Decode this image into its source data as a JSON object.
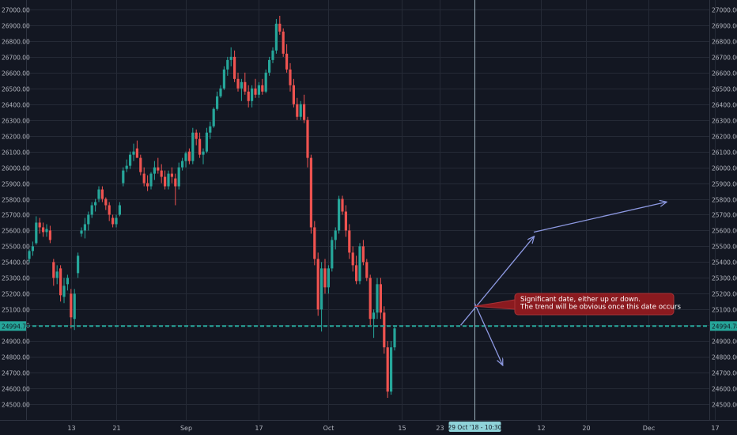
{
  "chart_data": {
    "type": "candlestick",
    "y_range": [
      24400,
      27060
    ],
    "y_ticks": [
      24500,
      24600,
      24700,
      24800,
      24900,
      25000,
      25100,
      25200,
      25300,
      25400,
      25500,
      25600,
      25700,
      25800,
      25900,
      26000,
      26100,
      26200,
      26300,
      26400,
      26500,
      26600,
      26700,
      26800,
      26900,
      27000
    ],
    "y_tick_labels": [
      "24500.00",
      "24600.00",
      "24700.00",
      "24800.00",
      "24900.00",
      "25000.00",
      "25100.00",
      "25200.00",
      "25300.00",
      "25400.00",
      "25500.00",
      "25600.00",
      "25700.00",
      "25800.00",
      "25900.00",
      "26000.00",
      "26100.00",
      "26200.00",
      "26300.00",
      "26400.00",
      "26500.00",
      "26600.00",
      "26700.00",
      "26800.00",
      "26900.00",
      "27000.00"
    ],
    "x_labels": [
      {
        "label": "13",
        "index": 12
      },
      {
        "label": "21",
        "index": 25
      },
      {
        "label": "Sep",
        "index": 45
      },
      {
        "label": "17",
        "index": 66
      },
      {
        "label": "Oct",
        "index": 86
      },
      {
        "label": "15",
        "index": 107
      },
      {
        "label": "23",
        "index": 118
      },
      {
        "label": "12",
        "index": 147
      },
      {
        "label": "20",
        "index": 160
      },
      {
        "label": "Dec",
        "index": 178
      },
      {
        "label": "17",
        "index": 197
      }
    ],
    "current_price": 24994.78,
    "current_price_label": "24994.78",
    "crosshair_index": 128,
    "crosshair_label": "29 Oct '18 - 10:30",
    "annotation": {
      "lines": [
        "Significant date, either up or down.",
        "The trend will be obvious once this date occurs"
      ],
      "anchor_index": 128,
      "anchor_price": 25120
    },
    "projections": [
      {
        "from": [
          124,
          25000
        ],
        "to": [
          145,
          25560
        ]
      },
      {
        "from": [
          145,
          25590
        ],
        "to": [
          183,
          25780
        ]
      },
      {
        "from": [
          128,
          25140
        ],
        "to": [
          136,
          24750
        ]
      }
    ],
    "candles": [
      [
        25420,
        25480,
        25400,
        25470
      ],
      [
        25470,
        25530,
        25440,
        25500
      ],
      [
        25520,
        25690,
        25510,
        25650
      ],
      [
        25650,
        25680,
        25580,
        25620
      ],
      [
        25620,
        25650,
        25560,
        25590
      ],
      [
        25590,
        25640,
        25560,
        25610
      ],
      [
        25600,
        25630,
        25520,
        25540
      ],
      [
        25400,
        25420,
        25250,
        25300
      ],
      [
        25300,
        25380,
        25260,
        25340
      ],
      [
        25360,
        25380,
        25150,
        25190
      ],
      [
        25180,
        25300,
        25140,
        25250
      ],
      [
        25260,
        25320,
        25220,
        25300
      ],
      [
        25200,
        25230,
        24980,
        25050
      ],
      [
        25040,
        25230,
        24970,
        25200
      ],
      [
        25330,
        25460,
        25300,
        25440
      ],
      [
        25580,
        25620,
        25560,
        25600
      ],
      [
        25600,
        25680,
        25550,
        25640
      ],
      [
        25640,
        25720,
        25600,
        25700
      ],
      [
        25700,
        25780,
        25680,
        25760
      ],
      [
        25760,
        25800,
        25720,
        25780
      ],
      [
        25800,
        25880,
        25780,
        25860
      ],
      [
        25860,
        25880,
        25780,
        25800
      ],
      [
        25800,
        25810,
        25730,
        25760
      ],
      [
        25760,
        25780,
        25660,
        25700
      ],
      [
        25680,
        25700,
        25620,
        25640
      ],
      [
        25640,
        25700,
        25620,
        25680
      ],
      [
        25700,
        25780,
        25690,
        25760
      ],
      [
        25900,
        26000,
        25880,
        25980
      ],
      [
        25990,
        26050,
        25970,
        26010
      ],
      [
        26010,
        26100,
        25990,
        26080
      ],
      [
        26080,
        26150,
        26040,
        26100
      ],
      [
        26120,
        26170,
        26080,
        26060
      ],
      [
        26060,
        26080,
        25950,
        25970
      ],
      [
        25960,
        26000,
        25880,
        25900
      ],
      [
        25900,
        25950,
        25850,
        25880
      ],
      [
        25880,
        25970,
        25860,
        25960
      ],
      [
        25960,
        26040,
        25920,
        26000
      ],
      [
        26000,
        26060,
        25960,
        25980
      ],
      [
        25980,
        26020,
        25900,
        25940
      ],
      [
        25940,
        25980,
        25860,
        25880
      ],
      [
        25880,
        25980,
        25860,
        25960
      ],
      [
        25960,
        26000,
        25900,
        25940
      ],
      [
        25930,
        25960,
        25760,
        25880
      ],
      [
        25880,
        26030,
        25860,
        26000
      ],
      [
        26000,
        26060,
        25980,
        26040
      ],
      [
        26040,
        26100,
        26000,
        26090
      ],
      [
        26100,
        26120,
        26020,
        26040
      ],
      [
        26040,
        26250,
        26020,
        26220
      ],
      [
        26220,
        26240,
        26140,
        26180
      ],
      [
        26180,
        26220,
        26060,
        26080
      ],
      [
        26080,
        26120,
        26020,
        26100
      ],
      [
        26100,
        26250,
        26090,
        26220
      ],
      [
        26220,
        26290,
        26180,
        26260
      ],
      [
        26260,
        26380,
        26250,
        26370
      ],
      [
        26370,
        26480,
        26360,
        26450
      ],
      [
        26450,
        26520,
        26440,
        26500
      ],
      [
        26500,
        26640,
        26490,
        26620
      ],
      [
        26620,
        26700,
        26580,
        26680
      ],
      [
        26680,
        26760,
        26640,
        26700
      ],
      [
        26700,
        26740,
        26540,
        26560
      ],
      [
        26560,
        26600,
        26480,
        26500
      ],
      [
        26500,
        26560,
        26420,
        26540
      ],
      [
        26540,
        26600,
        26460,
        26480
      ],
      [
        26480,
        26520,
        26380,
        26420
      ],
      [
        26420,
        26520,
        26380,
        26500
      ],
      [
        26500,
        26560,
        26440,
        26460
      ],
      [
        26460,
        26540,
        26440,
        26520
      ],
      [
        26520,
        26560,
        26460,
        26480
      ],
      [
        26480,
        26620,
        26470,
        26600
      ],
      [
        26600,
        26700,
        26580,
        26680
      ],
      [
        26680,
        26760,
        26660,
        26740
      ],
      [
        26740,
        26940,
        26720,
        26910
      ],
      [
        26910,
        26960,
        26840,
        26860
      ],
      [
        26860,
        26880,
        26700,
        26720
      ],
      [
        26720,
        26780,
        26600,
        26620
      ],
      [
        26620,
        26660,
        26480,
        26520
      ],
      [
        26520,
        26560,
        26380,
        26400
      ],
      [
        26400,
        26440,
        26300,
        26320
      ],
      [
        26320,
        26420,
        26300,
        26400
      ],
      [
        26400,
        26460,
        26280,
        26300
      ],
      [
        26300,
        26320,
        26000,
        26060
      ],
      [
        26060,
        26080,
        25580,
        25620
      ],
      [
        25620,
        25660,
        25380,
        25420
      ],
      [
        25420,
        25460,
        25060,
        25100
      ],
      [
        25100,
        25400,
        24960,
        25360
      ],
      [
        25360,
        25420,
        25200,
        25240
      ],
      [
        25240,
        25380,
        25200,
        25360
      ],
      [
        25360,
        25560,
        25340,
        25540
      ],
      [
        25540,
        25620,
        25480,
        25600
      ],
      [
        25600,
        25820,
        25580,
        25800
      ],
      [
        25800,
        25820,
        25700,
        25720
      ],
      [
        25720,
        25760,
        25560,
        25600
      ],
      [
        25600,
        25640,
        25420,
        25460
      ],
      [
        25460,
        25500,
        25340,
        25380
      ],
      [
        25380,
        25440,
        25260,
        25280
      ],
      [
        25280,
        25520,
        25260,
        25500
      ],
      [
        25500,
        25540,
        25380,
        25400
      ],
      [
        25400,
        25420,
        25280,
        25300
      ],
      [
        25300,
        25320,
        25000,
        25040
      ],
      [
        25040,
        25100,
        24920,
        25080
      ],
      [
        25080,
        25300,
        25040,
        25260
      ],
      [
        25260,
        25300,
        25040,
        25080
      ],
      [
        25080,
        25120,
        24820,
        24860
      ],
      [
        24860,
        24900,
        24540,
        24580
      ],
      [
        24580,
        24900,
        24560,
        24860
      ],
      [
        24860,
        25000,
        24840,
        24980
      ]
    ]
  }
}
